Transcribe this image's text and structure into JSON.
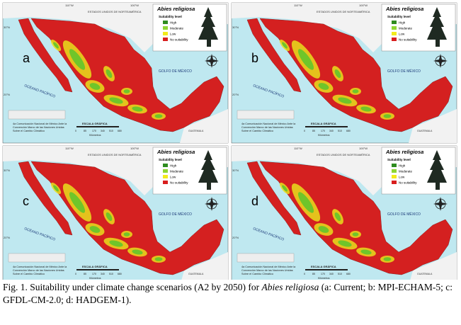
{
  "figure": {
    "panels": [
      {
        "letter": "a"
      },
      {
        "letter": "b"
      },
      {
        "letter": "c"
      },
      {
        "letter": "d"
      }
    ],
    "common": {
      "legend_title": "Abies religiosa",
      "legend_subtitle": "Suitability level",
      "legend_items": [
        {
          "label": "High",
          "color": "#2e8b1f"
        },
        {
          "label": "Moderate",
          "color": "#8ed632"
        },
        {
          "label": "Low",
          "color": "#f2ea1c"
        },
        {
          "label": "No suitability",
          "color": "#d81e1e"
        }
      ],
      "gulf_label": "GOLFO DE MÉXICO",
      "pacific_label": "OCÉANO PACÍFICO",
      "usa_label": "ESTADOS UNIDOS DE NORTEAMÉRICA",
      "guatemala_label": "GUATEMALA",
      "scale_title": "ESCALA GRÁFICA",
      "scale_ticks": [
        "0",
        "85",
        "170",
        "340",
        "510",
        "680"
      ],
      "scale_unit": "Kilómetros",
      "lon_labels": [
        "110°W",
        "100°W",
        "90°W"
      ],
      "lat_labels": [
        "30°N",
        "20°N"
      ],
      "credits": [
        "4a Comunicación Nacional de México Ante la",
        "Convención Marco de las Naciones Unidas",
        "Sobre el Cambio Climático"
      ]
    },
    "caption": {
      "prefix": "Fig. 1. Suitability under climate change scenarios (A2 by 2050) for ",
      "species": "Abies religiosa",
      "suffix": " (a: Current; b: MPI-ECHAM-5; c: GFDL-CM-2.0; d: HADGEM-1)."
    }
  }
}
